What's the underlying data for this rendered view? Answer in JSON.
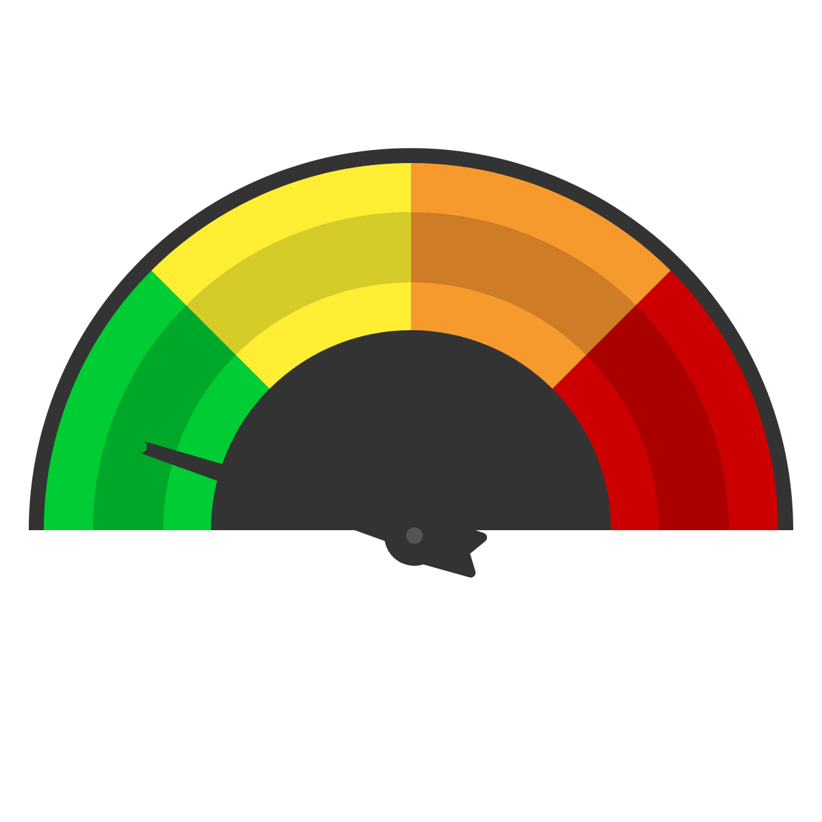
{
  "gauge": {
    "reading": 0.1,
    "rim_color": "#333333",
    "needle_color": "#333333",
    "pivot_highlight_color": "#555555",
    "zones": [
      {
        "name": "green",
        "light": "#00CC33",
        "dark": "#00A82A"
      },
      {
        "name": "yellow",
        "light": "#FFEE33",
        "dark": "#D5CC29"
      },
      {
        "name": "orange",
        "light": "#F79A2D",
        "dark": "#CF7C27"
      },
      {
        "name": "red",
        "light": "#CC0000",
        "dark": "#AA0000"
      }
    ]
  }
}
